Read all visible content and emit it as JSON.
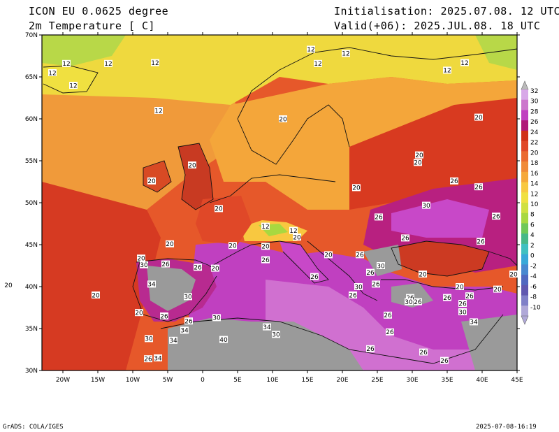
{
  "header": {
    "model": "ICON EU 0.0625 degree",
    "variable": "2m Temperature [ C]",
    "init": "Initialisation: 2025.07.08. 12 UTC",
    "valid": "Valid(+06): 2025.JUL.08. 18 UTC"
  },
  "footer": {
    "credit": "GrADS: COLA/IGES",
    "timestamp": "2025-07-08-16:19"
  },
  "axes": {
    "lat_ticks": [
      "70N",
      "65N",
      "60N",
      "55N",
      "50N",
      "45N",
      "40N",
      "35N",
      "30N"
    ],
    "lon_ticks": [
      "20W",
      "15W",
      "10W",
      "5W",
      "0",
      "5E",
      "10E",
      "15E",
      "20E",
      "25E",
      "30E",
      "35E",
      "40E",
      "45E"
    ]
  },
  "colorbar": {
    "labels": [
      "32",
      "30",
      "28",
      "26",
      "24",
      "22",
      "20",
      "18",
      "16",
      "14",
      "12",
      "10",
      "8",
      "6",
      "4",
      "2",
      "0",
      "-2",
      "-4",
      "-6",
      "-8",
      "-10"
    ],
    "colors": [
      "#d8a8e8",
      "#cc77cc",
      "#c040c0",
      "#b01878",
      "#d03018",
      "#e04828",
      "#ea6a30",
      "#f08a38",
      "#f5a83a",
      "#f8c840",
      "#f0e040",
      "#d0e040",
      "#a8d840",
      "#70c858",
      "#48b888",
      "#40c0c0",
      "#38a8d8",
      "#4888d0",
      "#5068c0",
      "#6058b0",
      "#8080c8",
      "#b0a8d8"
    ]
  },
  "colors": {
    "land_hot": "#cc44cc",
    "land_warm": "#e6582a",
    "sea_warm": "#e86a32",
    "sea_cool": "#f5b53a",
    "north_cool": "#eedd3a",
    "no_data": "#9a9a9a"
  },
  "contour_labels": [
    {
      "text": "12",
      "lon": -19.5,
      "lat": 66.6
    },
    {
      "text": "12",
      "lon": -21.5,
      "lat": 65.5
    },
    {
      "text": "12",
      "lon": -13.5,
      "lat": 66.6
    },
    {
      "text": "12",
      "lon": -18.5,
      "lat": 64.0
    },
    {
      "text": "12",
      "lon": -6.8,
      "lat": 66.7
    },
    {
      "text": "12",
      "lon": -6.3,
      "lat": 61.0
    },
    {
      "text": "12",
      "lon": 15.5,
      "lat": 68.3
    },
    {
      "text": "12",
      "lon": 20.5,
      "lat": 67.8
    },
    {
      "text": "12",
      "lon": 16.5,
      "lat": 66.6
    },
    {
      "text": "12",
      "lon": 37.5,
      "lat": 66.7
    },
    {
      "text": "12",
      "lon": 35.0,
      "lat": 65.8
    },
    {
      "text": "20",
      "lon": 11.5,
      "lat": 60.0
    },
    {
      "text": "20",
      "lon": 39.5,
      "lat": 60.2
    },
    {
      "text": "20",
      "lon": 31.0,
      "lat": 55.7
    },
    {
      "text": "20",
      "lon": 30.8,
      "lat": 54.8
    },
    {
      "text": "20",
      "lon": -1.5,
      "lat": 54.5
    },
    {
      "text": "20",
      "lon": -7.3,
      "lat": 52.6
    },
    {
      "text": "20",
      "lon": 22.0,
      "lat": 51.8
    },
    {
      "text": "26",
      "lon": 36.0,
      "lat": 52.6
    },
    {
      "text": "26",
      "lon": 39.5,
      "lat": 51.9
    },
    {
      "text": "30",
      "lon": 32.0,
      "lat": 49.7
    },
    {
      "text": "26",
      "lon": 42.0,
      "lat": 48.4
    },
    {
      "text": "26",
      "lon": 25.2,
      "lat": 48.3
    },
    {
      "text": "20",
      "lon": 2.3,
      "lat": 49.3
    },
    {
      "text": "12",
      "lon": 9.0,
      "lat": 47.2
    },
    {
      "text": "12",
      "lon": 13.0,
      "lat": 46.7
    },
    {
      "text": "20",
      "lon": 13.5,
      "lat": 45.9
    },
    {
      "text": "20",
      "lon": 4.3,
      "lat": 44.9
    },
    {
      "text": "20",
      "lon": 9.0,
      "lat": 44.8
    },
    {
      "text": "20",
      "lon": 18.0,
      "lat": 43.8
    },
    {
      "text": "26",
      "lon": 22.5,
      "lat": 43.8
    },
    {
      "text": "26",
      "lon": 29.0,
      "lat": 45.8
    },
    {
      "text": "26",
      "lon": 39.8,
      "lat": 45.4
    },
    {
      "text": "30",
      "lon": 25.5,
      "lat": 42.5
    },
    {
      "text": "26",
      "lon": 24.0,
      "lat": 41.7
    },
    {
      "text": "20",
      "lon": -4.7,
      "lat": 45.1
    },
    {
      "text": "20",
      "lon": -8.8,
      "lat": 43.4
    },
    {
      "text": "30",
      "lon": -8.4,
      "lat": 42.6
    },
    {
      "text": "26",
      "lon": -5.3,
      "lat": 42.7
    },
    {
      "text": "26",
      "lon": -0.7,
      "lat": 42.3
    },
    {
      "text": "20",
      "lon": 1.8,
      "lat": 42.2
    },
    {
      "text": "26",
      "lon": 9.0,
      "lat": 43.2
    },
    {
      "text": "26",
      "lon": 16.0,
      "lat": 41.2
    },
    {
      "text": "30",
      "lon": 22.3,
      "lat": 40.0
    },
    {
      "text": "26",
      "lon": 24.8,
      "lat": 40.3
    },
    {
      "text": "20",
      "lon": 31.5,
      "lat": 41.5
    },
    {
      "text": "20",
      "lon": 36.8,
      "lat": 40.0
    },
    {
      "text": "20",
      "lon": 42.2,
      "lat": 39.7
    },
    {
      "text": "20",
      "lon": 44.5,
      "lat": 41.5
    },
    {
      "text": "26",
      "lon": 21.5,
      "lat": 39.0
    },
    {
      "text": "26",
      "lon": 29.7,
      "lat": 38.7
    },
    {
      "text": "30",
      "lon": 29.5,
      "lat": 38.2
    },
    {
      "text": "26",
      "lon": 30.8,
      "lat": 38.2
    },
    {
      "text": "26",
      "lon": 35.0,
      "lat": 38.7
    },
    {
      "text": "26",
      "lon": 37.2,
      "lat": 38.0
    },
    {
      "text": "30",
      "lon": 37.2,
      "lat": 37.0
    },
    {
      "text": "34",
      "lon": 38.8,
      "lat": 35.8
    },
    {
      "text": "26",
      "lon": 38.2,
      "lat": 38.9
    },
    {
      "text": "20",
      "lon": -27.8,
      "lat": 40.2
    },
    {
      "text": "20",
      "lon": -15.3,
      "lat": 39.0
    },
    {
      "text": "20",
      "lon": -9.1,
      "lat": 36.9
    },
    {
      "text": "34",
      "lon": -7.3,
      "lat": 40.3
    },
    {
      "text": "30",
      "lon": -2.1,
      "lat": 38.8
    },
    {
      "text": "26",
      "lon": -5.5,
      "lat": 36.5
    },
    {
      "text": "26",
      "lon": -2.0,
      "lat": 35.9
    },
    {
      "text": "34",
      "lon": -2.6,
      "lat": 34.8
    },
    {
      "text": "30",
      "lon": 2.0,
      "lat": 36.3
    },
    {
      "text": "34",
      "lon": 9.2,
      "lat": 35.2
    },
    {
      "text": "30",
      "lon": 10.5,
      "lat": 34.3
    },
    {
      "text": "40",
      "lon": 3.0,
      "lat": 33.7
    },
    {
      "text": "34",
      "lon": -4.2,
      "lat": 33.6
    },
    {
      "text": "30",
      "lon": -7.7,
      "lat": 33.8
    },
    {
      "text": "26",
      "lon": 26.5,
      "lat": 36.6
    },
    {
      "text": "26",
      "lon": 26.8,
      "lat": 34.6
    },
    {
      "text": "26",
      "lon": 24.0,
      "lat": 32.6
    },
    {
      "text": "26",
      "lon": 31.6,
      "lat": 32.2
    },
    {
      "text": "26",
      "lon": 34.6,
      "lat": 31.2
    },
    {
      "text": "26",
      "lon": -7.8,
      "lat": 31.4
    },
    {
      "text": "34",
      "lon": -6.4,
      "lat": 31.5
    }
  ]
}
